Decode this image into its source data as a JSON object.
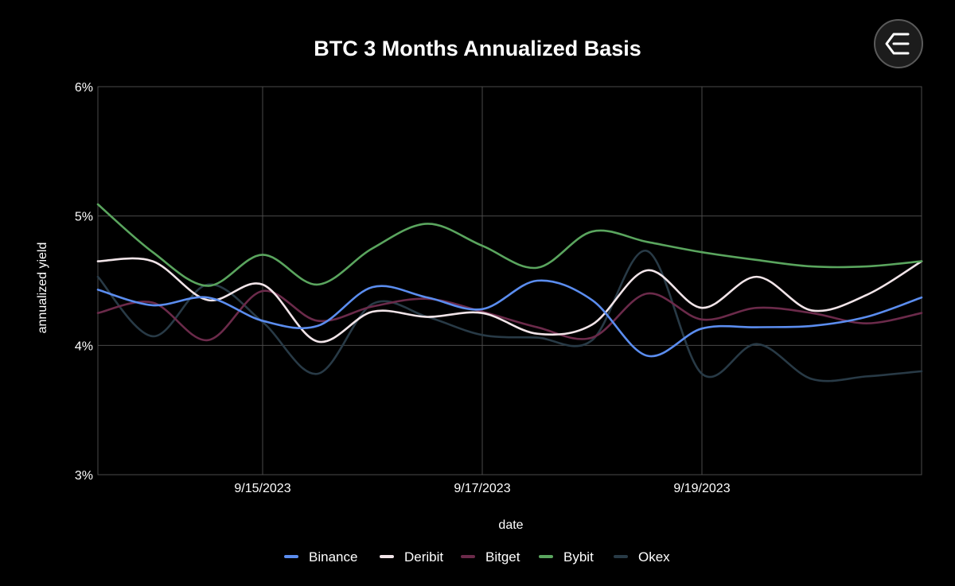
{
  "chart_data": {
    "type": "line",
    "title": "BTC 3 Months Annualized Basis",
    "xlabel": "date",
    "ylabel": "annualized yield",
    "ylim": [
      3,
      6
    ],
    "xlim": [
      0,
      7.5
    ],
    "yticks": [
      {
        "value": 3,
        "label": "3%"
      },
      {
        "value": 4,
        "label": "4%"
      },
      {
        "value": 5,
        "label": "5%"
      },
      {
        "value": 6,
        "label": "6%"
      }
    ],
    "xticks": [
      {
        "value": 1.5,
        "label": "9/15/2023"
      },
      {
        "value": 3.5,
        "label": "9/17/2023"
      },
      {
        "value": 5.5,
        "label": "9/19/2023"
      }
    ],
    "grid": true,
    "legend_position": "bottom",
    "x": [
      0,
      0.5,
      1,
      1.5,
      2,
      2.5,
      3,
      3.5,
      4,
      4.5,
      5,
      5.5,
      6,
      6.5,
      7,
      7.5
    ],
    "series": [
      {
        "name": "Binance",
        "color": "#5b8def",
        "values": [
          4.43,
          4.31,
          4.37,
          4.19,
          4.15,
          4.45,
          4.37,
          4.28,
          4.5,
          4.35,
          3.92,
          4.13,
          4.14,
          4.15,
          4.22,
          4.37
        ]
      },
      {
        "name": "Deribit",
        "color": "#f1e4e8",
        "values": [
          4.65,
          4.65,
          4.35,
          4.47,
          4.03,
          4.26,
          4.22,
          4.25,
          4.09,
          4.16,
          4.58,
          4.29,
          4.53,
          4.27,
          4.39,
          4.65
        ]
      },
      {
        "name": "Bitget",
        "color": "#6b2a4a",
        "values": [
          4.25,
          4.33,
          4.04,
          4.42,
          4.19,
          4.3,
          4.36,
          4.26,
          4.14,
          4.06,
          4.4,
          4.2,
          4.29,
          4.25,
          4.17,
          4.25
        ]
      },
      {
        "name": "Bybit",
        "color": "#5aa55e",
        "values": [
          5.09,
          4.72,
          4.46,
          4.7,
          4.47,
          4.75,
          4.94,
          4.77,
          4.6,
          4.88,
          4.8,
          4.72,
          4.66,
          4.61,
          4.61,
          4.65
        ]
      },
      {
        "name": "Okex",
        "color": "#283a46",
        "values": [
          4.53,
          4.07,
          4.47,
          4.18,
          3.78,
          4.32,
          4.22,
          4.08,
          4.06,
          4.04,
          4.73,
          3.78,
          4.01,
          3.74,
          3.76,
          3.8
        ]
      }
    ]
  },
  "logo": {
    "icon": "sigma-icon"
  }
}
